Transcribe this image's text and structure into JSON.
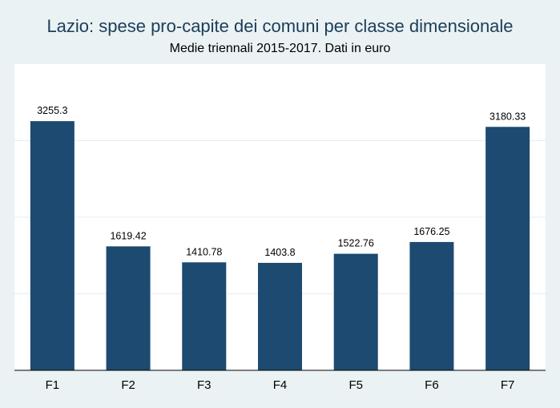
{
  "header": {
    "title": "Lazio: spese pro-capite dei comuni per classe dimensionale",
    "subtitle": "Medie triennali 2015-2017. Dati in euro"
  },
  "colors": {
    "background": "#eaf2f3",
    "plot_area": "#ffffff",
    "bar": "#1c4a70",
    "gridline": "#e6eef0"
  },
  "chart_data": {
    "type": "bar",
    "title": "Lazio: spese pro-capite dei comuni per classe dimensionale",
    "subtitle": "Medie triennali 2015-2017. Dati in euro",
    "categories": [
      "F1",
      "F2",
      "F3",
      "F4",
      "F5",
      "F6",
      "F7"
    ],
    "values": [
      3255.3,
      1619.42,
      1410.78,
      1403.8,
      1522.76,
      1676.25,
      3180.33
    ],
    "labels": [
      "3255.3",
      "1619.42",
      "1410.78",
      "1403.8",
      "1522.76",
      "1676.25",
      "3180.33"
    ],
    "xlabel": "",
    "ylabel": "",
    "ylim": [
      0,
      4000
    ],
    "ygrid": [
      1000,
      2000,
      3000
    ],
    "grid": true,
    "legend": "none"
  }
}
